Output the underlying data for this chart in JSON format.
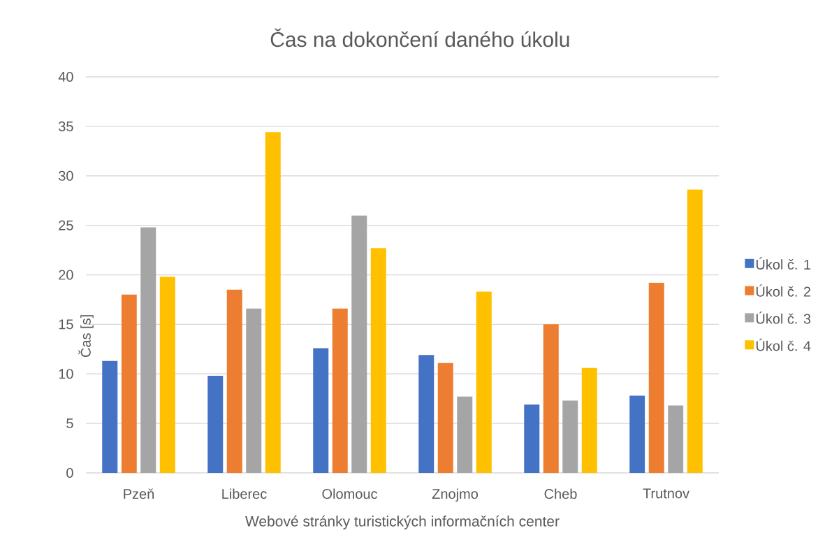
{
  "chart_data": {
    "type": "bar",
    "title": "Čas na dokončení daného úkolu",
    "xlabel": "Webové stránky turistických informačních center",
    "ylabel": "Čas [s]",
    "categories": [
      "Pzeň",
      "Liberec",
      "Olomouc",
      "Znojmo",
      "Cheb",
      "Trutnov"
    ],
    "series": [
      {
        "name": "Úkol č. 1",
        "color": "#4472c4",
        "values": [
          11.3,
          9.8,
          12.6,
          11.9,
          6.9,
          7.8
        ]
      },
      {
        "name": "Úkol č. 2",
        "color": "#ed7d31",
        "values": [
          18.0,
          18.5,
          16.6,
          11.1,
          15.0,
          19.2
        ]
      },
      {
        "name": "Úkol č. 3",
        "color": "#a5a5a5",
        "values": [
          24.8,
          16.6,
          26.0,
          7.7,
          7.3,
          6.8
        ]
      },
      {
        "name": "Úkol č. 4",
        "color": "#ffc000",
        "values": [
          19.8,
          34.4,
          22.7,
          18.3,
          10.6,
          28.6
        ]
      }
    ],
    "ylim": [
      0,
      40
    ],
    "yticks": [
      0,
      5,
      10,
      15,
      20,
      25,
      30,
      35,
      40
    ],
    "grid": "y",
    "legend": "right"
  }
}
